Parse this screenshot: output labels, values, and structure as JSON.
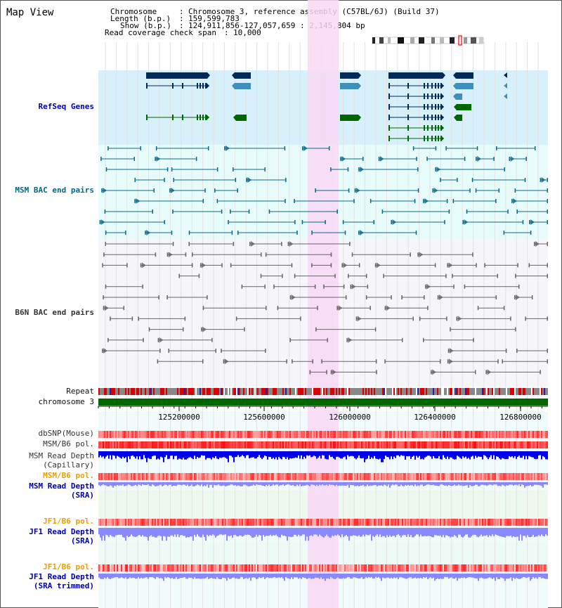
{
  "title": "Map View",
  "info": {
    "chromosome_key": "Chromosome",
    "chromosome_value": "Chromosome 3, reference assembly (C57BL/6J) (Build 37)",
    "length_key": "Length (b.p.)",
    "length_value": "159,599,783",
    "show_key": "Show (b.p.)",
    "show_value": "124,911,856-127,057,659 : 2,145,804 bp",
    "coverage_key": "Read coverage check span",
    "coverage_value": "10,000"
  },
  "tracks": {
    "refseq": "RefSeq Genes",
    "msm_bac": "MSM BAC end pairs",
    "b6n_bac": "B6N BAC end pairs",
    "repeat": "Repeat",
    "chromosome": "chromosome 3",
    "dbsnp": "dbSNP(Mouse)",
    "msm_b6_pol_1": "MSM/B6 pol.",
    "msm_depth_cap_1": "MSM Read Depth",
    "msm_depth_cap_2": "(Capillary)",
    "msm_b6_pol_2": "MSM/B6 pol.",
    "msm_depth_sra_1": "MSM Read Depth",
    "msm_depth_sra_2": "(SRA)",
    "jf1_b6_pol_1": "JF1/B6 pol.",
    "jf1_depth_sra_1": "JF1 Read Depth",
    "jf1_depth_sra_2": "(SRA)",
    "jf1_b6_pol_2": "JF1/B6 pol.",
    "jf1_depth_trim_1": "JF1 Read Depth",
    "jf1_depth_trim_2": "(SRA trimmed)"
  },
  "axis_ticks": [
    "125200000",
    "125600000",
    "126000000",
    "126400000",
    "126800000"
  ],
  "colors": {
    "refseq_bg": "#d8f0fa",
    "msm_bac_bg": "#e8fbfb",
    "b6n_bac_bg": "#f6f6fa",
    "highlight": "#f8d8f4",
    "gene_dark": "#002a5a",
    "gene_light": "#3f8fbd",
    "gene_green": "#006600",
    "bac_msm": "#0a6a8a",
    "bac_b6n": "#666666",
    "chromosome_bar": "#006600",
    "depth_blue": "#0000ee",
    "depth_light": "#8888ff"
  }
}
